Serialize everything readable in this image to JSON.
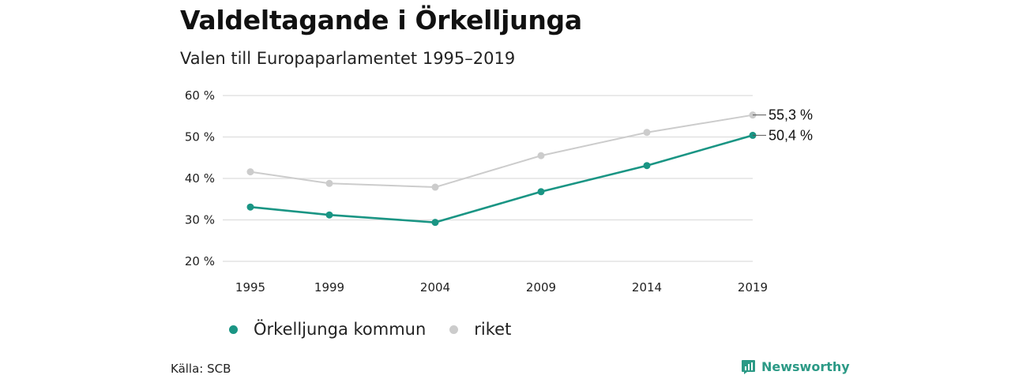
{
  "title": "Valdeltagande i Örkelljunga",
  "subtitle": "Valen till Europaparlamentet 1995–2019",
  "source": "Källa: SCB",
  "brand": "Newsworthy",
  "colors": {
    "orkelljunga": "#1a9584",
    "riket": "#cccccc",
    "grid": "#dddddd",
    "brand": "#2c9a86"
  },
  "chart_data": {
    "type": "line",
    "x": [
      "1995",
      "1999",
      "2004",
      "2009",
      "2014",
      "2019"
    ],
    "series": [
      {
        "name": "Örkelljunga kommun",
        "values": [
          33.1,
          31.2,
          29.4,
          36.8,
          43.1,
          50.4
        ],
        "color": "#1a9584",
        "end_label": "50,4 %"
      },
      {
        "name": "riket",
        "values": [
          41.6,
          38.8,
          37.9,
          45.5,
          51.1,
          55.3
        ],
        "color": "#cccccc",
        "end_label": "55,3 %"
      }
    ],
    "yticks": [
      "20 %",
      "30 %",
      "40 %",
      "50 %",
      "60 %"
    ],
    "ylim": [
      20,
      60
    ],
    "grid": true,
    "legend": "bottom"
  }
}
